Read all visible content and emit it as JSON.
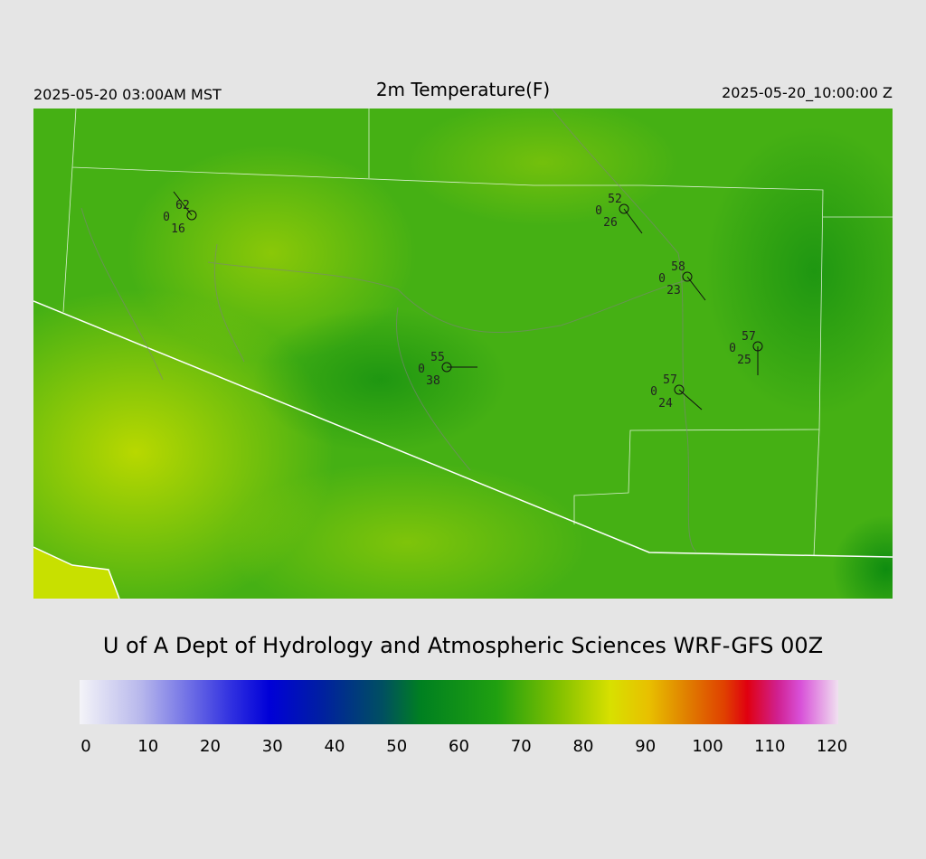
{
  "header": {
    "left": "2025-05-20 03:00AM MST",
    "title": "2m Temperature(F)",
    "right": "2025-05-20_10:00:00 Z"
  },
  "stations": [
    {
      "temperature": 62,
      "precip": 0,
      "dewpoint": 16
    },
    {
      "temperature": 52,
      "precip": 0,
      "dewpoint": 26
    },
    {
      "temperature": 58,
      "precip": 0,
      "dewpoint": 23
    },
    {
      "temperature": 57,
      "precip": 0,
      "dewpoint": 25
    },
    {
      "temperature": 55,
      "precip": 0,
      "dewpoint": 38
    },
    {
      "temperature": 57,
      "precip": 0,
      "dewpoint": 24
    }
  ],
  "credit": "U of A Dept of Hydrology and Atmospheric Sciences WRF-GFS 00Z",
  "colorbar": {
    "ticks": [
      0,
      10,
      20,
      30,
      40,
      50,
      60,
      70,
      80,
      90,
      100,
      110,
      120
    ]
  }
}
